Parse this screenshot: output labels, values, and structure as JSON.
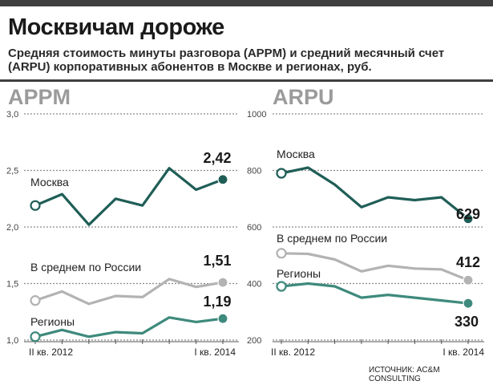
{
  "header": {
    "title": "Москвичам дороже",
    "subtitle": "Средняя стоимость минуты разговора (APPM) и средний месячный счет (ARPU) корпоративных абонентов в Москве и регионах, руб."
  },
  "source": "ИСТОЧНИК: AC&M CONSULTING",
  "colors": {
    "moscow": "#1f5e57",
    "russia": "#b3b3b3",
    "regions": "#3e8a7d",
    "grid": "#8a8a8a",
    "axis": "#555555"
  },
  "chart_data": [
    {
      "type": "line",
      "title": "APPM",
      "x": [
        "II кв. 2012",
        "",
        "",
        "",
        "",
        "",
        "",
        "I кв. 2014"
      ],
      "ylim": [
        1.0,
        3.0
      ],
      "yticks": [
        "3,0",
        "2,5",
        "2,0",
        "1,5",
        "1,0"
      ],
      "ytick_values": [
        3.0,
        2.5,
        2.0,
        1.5,
        1.0
      ],
      "grid": true,
      "series": [
        {
          "name": "Москва",
          "values": [
            2.19,
            2.29,
            2.02,
            2.25,
            2.19,
            2.52,
            2.33,
            2.42
          ],
          "end_label": "2,42"
        },
        {
          "name": "В среднем по России",
          "values": [
            1.35,
            1.43,
            1.32,
            1.39,
            1.38,
            1.54,
            1.47,
            1.51
          ],
          "end_label": "1,51"
        },
        {
          "name": "Регионы",
          "values": [
            1.03,
            1.09,
            1.03,
            1.07,
            1.06,
            1.2,
            1.16,
            1.19
          ],
          "end_label": "1,19"
        }
      ]
    },
    {
      "type": "line",
      "title": "ARPU",
      "x": [
        "II кв. 2012",
        "",
        "",
        "",
        "",
        "",
        "",
        "I кв. 2014"
      ],
      "ylim": [
        200,
        1000
      ],
      "yticks": [
        "1000",
        "800",
        "600",
        "400",
        "200"
      ],
      "ytick_values": [
        1000,
        800,
        600,
        400,
        200
      ],
      "grid": true,
      "series": [
        {
          "name": "Москва",
          "values": [
            790,
            810,
            750,
            670,
            705,
            695,
            705,
            629
          ],
          "end_label": "629"
        },
        {
          "name": "В среднем по России",
          "values": [
            507,
            505,
            485,
            443,
            463,
            453,
            450,
            412
          ],
          "end_label": "412"
        },
        {
          "name": "Регионы",
          "values": [
            390,
            400,
            390,
            350,
            360,
            350,
            340,
            330
          ],
          "end_label": "330"
        }
      ]
    }
  ]
}
